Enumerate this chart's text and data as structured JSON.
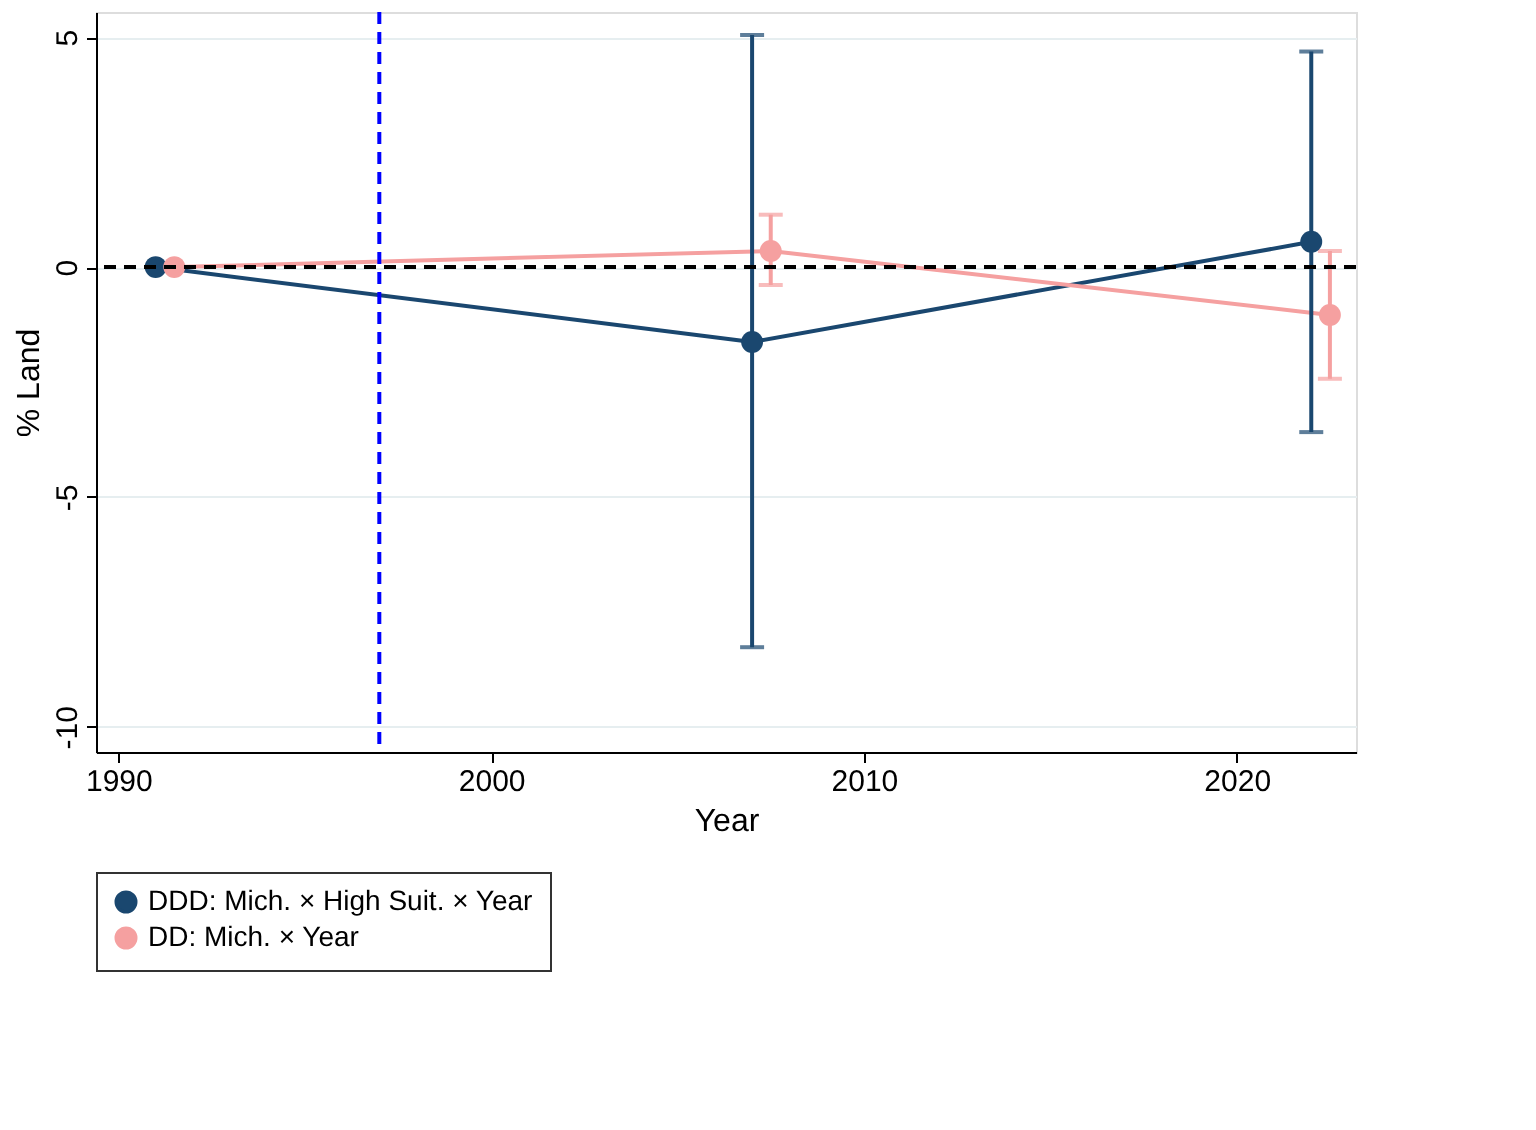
{
  "chart_data": {
    "type": "line",
    "xlabel": "Year",
    "ylabel": "% Land",
    "series": [
      {
        "name": "DDD: Mich. × High Suit. × Year",
        "color": "#1a476f",
        "x": [
          1991,
          2007,
          2022
        ],
        "values": [
          0,
          -1.63,
          0.55
        ],
        "errors": [
          null,
          [
            -8.27,
            5.05
          ],
          [
            -3.59,
            4.69
          ]
        ]
      },
      {
        "name": "DD: Mich. × Year",
        "color": "#f5a0a0",
        "x": [
          1991.5,
          2007.5,
          2022.5
        ],
        "values": [
          0,
          0.35,
          -1.04
        ],
        "errors": [
          null,
          [
            -0.39,
            1.14
          ],
          [
            -2.43,
            0.35
          ]
        ]
      }
    ],
    "xlim": [
      1989.4,
      2023.2
    ],
    "xticks": [
      1990,
      2000,
      2010,
      2020
    ],
    "ylim": [
      -10.55,
      5.55
    ],
    "yticks": [
      -10,
      -5,
      0,
      5
    ],
    "ref_lines": [
      {
        "axis": "y",
        "value": 0,
        "color": "#000000",
        "line_style": "dashed"
      },
      {
        "axis": "x",
        "value": 1997,
        "color": "#0000ff",
        "line_style": "dashed"
      }
    ],
    "grid": "y",
    "legend": "bottom",
    "marker": "circle",
    "line_style": "solid"
  }
}
